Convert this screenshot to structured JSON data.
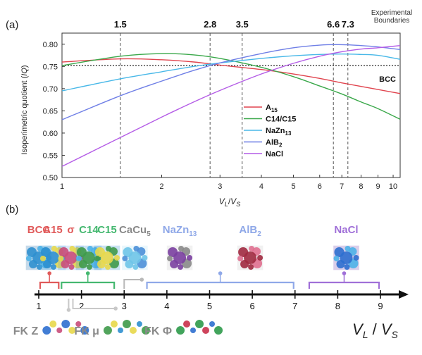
{
  "chart_data": [
    {
      "type": "line",
      "panel_label": "(a)",
      "xlabel": "V_L/V_S",
      "ylabel": "Isoperimetric quotient (IQ)",
      "xscale": "log",
      "xlim": [
        1,
        10.5
      ],
      "ylim": [
        0.5,
        0.825
      ],
      "x_ticks": [
        1,
        2,
        3,
        4,
        5,
        6,
        7,
        8,
        9,
        10
      ],
      "x_tick_labels": [
        "1",
        "2",
        "3",
        "4",
        "5",
        "6",
        "7",
        "8",
        "9",
        "10"
      ],
      "y_ticks": [
        0.5,
        0.55,
        0.6,
        0.65,
        0.7,
        0.75,
        0.8
      ],
      "y_tick_labels": [
        "0.50",
        "0.55",
        "0.60",
        "0.65",
        "0.70",
        "0.75",
        "0.80"
      ],
      "boundaries_title": "Experimental Boundaries",
      "boundaries": [
        {
          "x": 1.5,
          "label": "1.5"
        },
        {
          "x": 2.8,
          "label": "2.8"
        },
        {
          "x": 3.5,
          "label": "3.5"
        },
        {
          "x": 6.6,
          "label": "6.6"
        },
        {
          "x": 7.3,
          "label": "7.3"
        }
      ],
      "reference_line": {
        "name": "BCC",
        "y": 0.752
      },
      "legend_position": "center-right",
      "x": [
        1.0,
        1.5,
        2.0,
        2.5,
        3.0,
        4.0,
        5.0,
        6.0,
        7.0,
        8.0,
        9.0,
        10.5
      ],
      "series": [
        {
          "name": "A15",
          "color": "#e0444e",
          "values": [
            0.76,
            0.767,
            0.765,
            0.76,
            0.753,
            0.743,
            0.733,
            0.723,
            0.713,
            0.705,
            0.698,
            0.689
          ]
        },
        {
          "name": "C14/C15",
          "color": "#3aa84a",
          "values": [
            0.752,
            0.773,
            0.779,
            0.776,
            0.768,
            0.748,
            0.727,
            0.706,
            0.688,
            0.67,
            0.655,
            0.631
          ]
        },
        {
          "name": "NaZn13",
          "color": "#48b8e8",
          "values": [
            0.695,
            0.722,
            0.738,
            0.75,
            0.758,
            0.768,
            0.774,
            0.777,
            0.778,
            0.777,
            0.775,
            0.766
          ]
        },
        {
          "name": "AlB2",
          "color": "#6f7fe6",
          "values": [
            0.63,
            0.684,
            0.717,
            0.741,
            0.758,
            0.779,
            0.792,
            0.798,
            0.799,
            0.797,
            0.794,
            0.788
          ]
        },
        {
          "name": "NaCl",
          "color": "#b45ce6",
          "values": [
            0.525,
            0.59,
            0.636,
            0.67,
            0.696,
            0.733,
            0.757,
            0.773,
            0.783,
            0.789,
            0.792,
            0.797
          ]
        }
      ]
    },
    {
      "type": "diagram",
      "panel_label": "(b)",
      "axis_label": "V_L / V_S",
      "axis_ticks": [
        1,
        2,
        3,
        4,
        5,
        6,
        7,
        8,
        9
      ],
      "phases_top": [
        {
          "label": "BCC",
          "x": 1.0,
          "color": "#e05a5a"
        },
        {
          "label": "A15",
          "x": 1.33,
          "color": "#e05a5a"
        },
        {
          "label": "σ",
          "x": 1.75,
          "color": "#e05a5a"
        },
        {
          "label": "C14",
          "x": 2.17,
          "color": "#45b870"
        },
        {
          "label": "C15",
          "x": 2.6,
          "color": "#45b870"
        },
        {
          "label": "CaCu",
          "sub": "5",
          "x": 3.25,
          "color": "#888888"
        },
        {
          "label": "NaZn",
          "sub": "13",
          "x": 4.3,
          "color": "#8fa8e8"
        },
        {
          "label": "AlB",
          "sub": "2",
          "x": 5.95,
          "color": "#8fa8e8"
        },
        {
          "label": "NaCl",
          "x": 8.2,
          "color": "#a070d8"
        }
      ],
      "phases_bottom": [
        {
          "label": "FK Z",
          "x": 1.12,
          "color": "#8a8a8a"
        },
        {
          "label": "FK μ",
          "x": 2.55,
          "color": "#8a8a8a"
        },
        {
          "label": "FK Φ",
          "x": 4.25,
          "color": "#8a8a8a"
        }
      ],
      "ranges": [
        {
          "from": 1.0,
          "to": 1.5,
          "color": "#e05a5a"
        },
        {
          "from": 1.5,
          "to": 2.8,
          "color": "#45b870"
        },
        {
          "from": 3.5,
          "to": 7.0,
          "color": "#8fa8e8"
        },
        {
          "from": 7.3,
          "to": 9.0,
          "color": "#a070d8"
        }
      ]
    }
  ]
}
